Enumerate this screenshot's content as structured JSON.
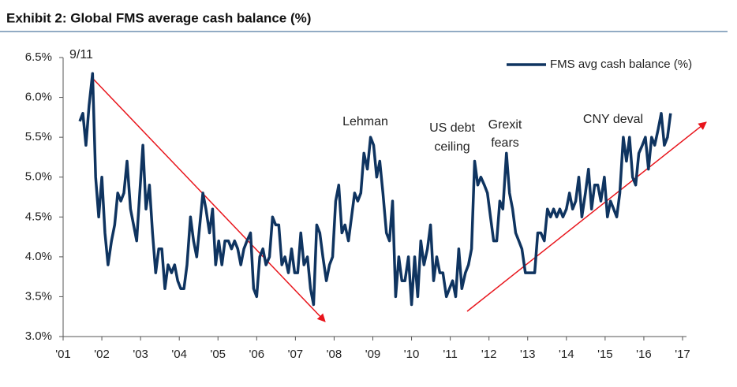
{
  "chart_data": {
    "type": "line",
    "title": "Exhibit 2: Global FMS average cash balance (%)",
    "xlim": [
      2001,
      2017
    ],
    "xticks": [
      {
        "value": 2001,
        "label": "'01"
      },
      {
        "value": 2002,
        "label": "'02"
      },
      {
        "value": 2003,
        "label": "'03"
      },
      {
        "value": 2004,
        "label": "'04"
      },
      {
        "value": 2005,
        "label": "'05"
      },
      {
        "value": 2006,
        "label": "'06"
      },
      {
        "value": 2007,
        "label": "'07"
      },
      {
        "value": 2008,
        "label": "'08"
      },
      {
        "value": 2009,
        "label": "'09"
      },
      {
        "value": 2010,
        "label": "'10"
      },
      {
        "value": 2011,
        "label": "'11"
      },
      {
        "value": 2012,
        "label": "'12"
      },
      {
        "value": 2013,
        "label": "'13"
      },
      {
        "value": 2014,
        "label": "'14"
      },
      {
        "value": 2015,
        "label": "'15"
      },
      {
        "value": 2016,
        "label": "'16"
      },
      {
        "value": 2017,
        "label": "'17"
      }
    ],
    "ylim": [
      3,
      6.5
    ],
    "yticks": [
      {
        "value": 3,
        "label": "3.0%"
      },
      {
        "value": 3.5,
        "label": "3.5%"
      },
      {
        "value": 4,
        "label": "4.0%"
      },
      {
        "value": 4.5,
        "label": "4.5%"
      },
      {
        "value": 5,
        "label": "5.0%"
      },
      {
        "value": 5.5,
        "label": "5.5%"
      },
      {
        "value": 6,
        "label": "6.0%"
      },
      {
        "value": 6.5,
        "label": "6.5%"
      }
    ],
    "legend": "top-right",
    "x": [
      2001.43,
      2001.51,
      2001.59,
      2001.67,
      2001.76,
      2001.84,
      2001.92,
      2002.0,
      2002.08,
      2002.16,
      2002.25,
      2002.33,
      2002.41,
      2002.49,
      2002.57,
      2002.65,
      2002.74,
      2002.82,
      2002.9,
      2002.98,
      2003.06,
      2003.14,
      2003.23,
      2003.31,
      2003.39,
      2003.47,
      2003.55,
      2003.63,
      2003.71,
      2003.8,
      2003.88,
      2003.96,
      2004.04,
      2004.12,
      2004.2,
      2004.29,
      2004.37,
      2004.45,
      2004.53,
      2004.61,
      2004.69,
      2004.78,
      2004.86,
      2004.94,
      2005.02,
      2005.1,
      2005.18,
      2005.27,
      2005.35,
      2005.43,
      2005.51,
      2005.59,
      2005.67,
      2005.75,
      2005.84,
      2005.92,
      2006.0,
      2006.08,
      2006.16,
      2006.24,
      2006.33,
      2006.41,
      2006.49,
      2006.57,
      2006.65,
      2006.73,
      2006.82,
      2006.9,
      2006.98,
      2007.06,
      2007.14,
      2007.22,
      2007.31,
      2007.39,
      2007.47,
      2007.55,
      2007.63,
      2007.71,
      2007.8,
      2007.88,
      2007.96,
      2008.04,
      2008.12,
      2008.2,
      2008.28,
      2008.37,
      2008.45,
      2008.53,
      2008.61,
      2008.69,
      2008.77,
      2008.86,
      2008.94,
      2009.02,
      2009.1,
      2009.18,
      2009.26,
      2009.35,
      2009.43,
      2009.51,
      2009.59,
      2009.67,
      2009.75,
      2009.83,
      2009.92,
      2010.0,
      2010.08,
      2010.16,
      2010.24,
      2010.32,
      2010.41,
      2010.49,
      2010.57,
      2010.65,
      2010.73,
      2010.81,
      2010.9,
      2010.98,
      2011.06,
      2011.14,
      2011.22,
      2011.3,
      2011.39,
      2011.47,
      2011.55,
      2011.63,
      2011.71,
      2011.79,
      2011.88,
      2011.96,
      2012.04,
      2012.12,
      2012.2,
      2012.28,
      2012.36,
      2012.45,
      2012.53,
      2012.61,
      2012.69,
      2012.77,
      2012.85,
      2012.94,
      2013.02,
      2013.1,
      2013.18,
      2013.26,
      2013.34,
      2013.43,
      2013.51,
      2013.59,
      2013.67,
      2013.75,
      2013.83,
      2013.91,
      2014.0,
      2014.08,
      2014.16,
      2014.24,
      2014.32,
      2014.4,
      2014.49,
      2014.57,
      2014.65,
      2014.73,
      2014.81,
      2014.89,
      2014.98,
      2015.06,
      2015.14,
      2015.22,
      2015.3,
      2015.38,
      2015.47,
      2015.55,
      2015.63,
      2015.71,
      2015.79,
      2015.87,
      2015.96,
      2016.04,
      2016.12,
      2016.2,
      2016.28,
      2016.37,
      2016.45,
      2016.53,
      2016.61,
      2016.69
    ],
    "series": [
      {
        "name": "FMS avg cash balance (%)",
        "color": "#0f3460",
        "values": [
          5.7,
          5.8,
          5.4,
          5.9,
          6.3,
          5.0,
          4.5,
          5.0,
          4.3,
          3.9,
          4.2,
          4.4,
          4.8,
          4.7,
          4.8,
          5.2,
          4.6,
          4.4,
          4.2,
          4.8,
          5.4,
          4.6,
          4.9,
          4.3,
          3.8,
          4.1,
          4.1,
          3.6,
          3.9,
          3.8,
          3.9,
          3.7,
          3.6,
          3.6,
          3.9,
          4.5,
          4.2,
          4.0,
          4.4,
          4.8,
          4.6,
          4.3,
          4.6,
          3.9,
          4.2,
          3.9,
          4.2,
          4.2,
          4.1,
          4.2,
          4.1,
          3.9,
          4.1,
          4.2,
          4.3,
          3.6,
          3.5,
          4.0,
          4.1,
          3.9,
          4.0,
          4.5,
          4.4,
          4.4,
          3.9,
          4.0,
          3.8,
          4.1,
          3.8,
          3.8,
          4.3,
          3.9,
          4.0,
          3.6,
          3.4,
          4.4,
          4.3,
          4.0,
          3.7,
          3.9,
          4.0,
          4.7,
          4.9,
          4.3,
          4.4,
          4.2,
          4.5,
          4.8,
          4.7,
          4.8,
          5.3,
          5.1,
          5.5,
          5.4,
          5.0,
          5.2,
          4.8,
          4.3,
          4.2,
          4.7,
          3.5,
          4.0,
          3.7,
          3.7,
          4.0,
          3.4,
          4.0,
          3.5,
          4.2,
          3.9,
          4.1,
          4.4,
          3.7,
          4.0,
          3.8,
          3.8,
          3.5,
          3.6,
          3.7,
          3.5,
          4.1,
          3.6,
          3.8,
          3.9,
          4.1,
          5.2,
          4.9,
          5.0,
          4.9,
          4.8,
          4.5,
          4.2,
          4.2,
          4.7,
          4.6,
          5.3,
          4.8,
          4.6,
          4.3,
          4.2,
          4.1,
          3.8,
          3.8,
          3.8,
          3.8,
          4.3,
          4.3,
          4.2,
          4.6,
          4.5,
          4.6,
          4.5,
          4.6,
          4.5,
          4.6,
          4.8,
          4.6,
          4.7,
          5.0,
          4.5,
          4.8,
          5.1,
          4.6,
          4.9,
          4.9,
          4.7,
          5.0,
          4.5,
          4.7,
          4.6,
          4.5,
          4.8,
          5.5,
          5.2,
          5.5,
          5.0,
          4.9,
          5.3,
          5.4,
          5.5,
          5.1,
          5.5,
          5.4,
          5.6,
          5.8,
          5.4,
          5.5,
          5.8
        ]
      }
    ],
    "annotations": [
      [
        "9/11"
      ],
      [
        "Lehman"
      ],
      [
        "US debt",
        "ceiling"
      ],
      [
        "Grexit",
        "fears"
      ],
      [
        "CNY deval"
      ]
    ]
  }
}
